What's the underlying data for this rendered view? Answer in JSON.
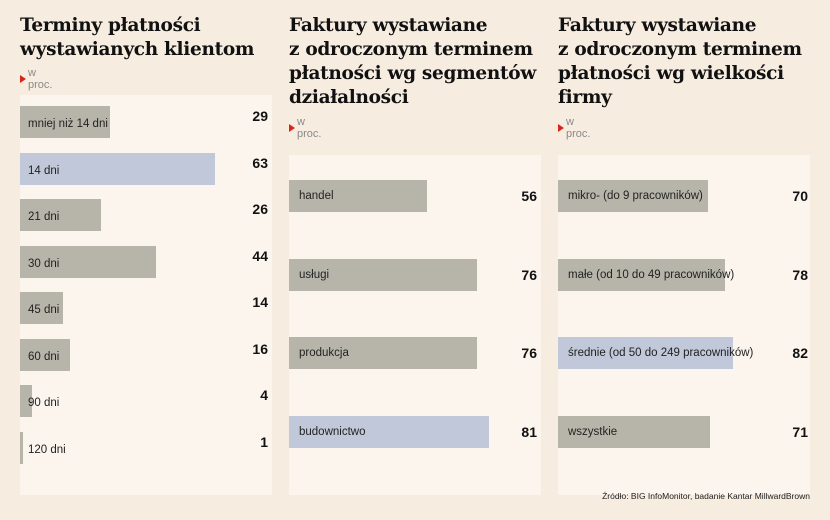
{
  "source": "Źródło: BIG InfoMonitor, badanie Kantar MillwardBrown",
  "colors": {
    "bar": "#b7b5aa",
    "highlight": "#c1c8d9",
    "accent": "#d9261c",
    "background": "#f7ece0"
  },
  "panels": [
    {
      "title_lines": [
        "Terminy płatności",
        "wystawianych klientom"
      ],
      "unit": "w proc."
    },
    {
      "title_lines": [
        "Faktury wystawiane",
        "z odroczonym terminem",
        "płatności wg segmentów",
        "działalności"
      ],
      "unit": "w proc."
    },
    {
      "title_lines": [
        "Faktury wystawiane",
        "z odroczonym terminem",
        "płatności wg wielkości",
        "firmy"
      ],
      "unit": "w proc."
    }
  ],
  "chart_data": [
    {
      "type": "bar",
      "title": "Terminy płatności wystawianych klientom",
      "subtitle": "w proc.",
      "categories": [
        "mniej niż 14 dni",
        "14 dni",
        "21 dni",
        "30 dni",
        "45 dni",
        "60 dni",
        "90 dni",
        "120 dni"
      ],
      "values": [
        29,
        63,
        26,
        44,
        14,
        16,
        4,
        1
      ],
      "highlight": [
        1
      ],
      "orientation": "horizontal"
    },
    {
      "type": "bar",
      "title": "Faktury wystawiane z odroczonym terminem płatności wg segmentów działalności",
      "subtitle": "w proc.",
      "categories": [
        "handel",
        "usługi",
        "produkcja",
        "budownictwo"
      ],
      "values": [
        56,
        76,
        76,
        81
      ],
      "highlight": [
        3
      ],
      "orientation": "horizontal"
    },
    {
      "type": "bar",
      "title": "Faktury wystawiane z odroczonym terminem płatności wg wielkości firmy",
      "subtitle": "w proc.",
      "categories": [
        "mikro- (do 9 pracowników)",
        "małe (od 10 do 49 pracowników)",
        "średnie (od 50 do 249 pracowników)",
        "wszystkie"
      ],
      "values": [
        70,
        78,
        82,
        71
      ],
      "highlight": [
        2
      ],
      "orientation": "horizontal"
    }
  ]
}
